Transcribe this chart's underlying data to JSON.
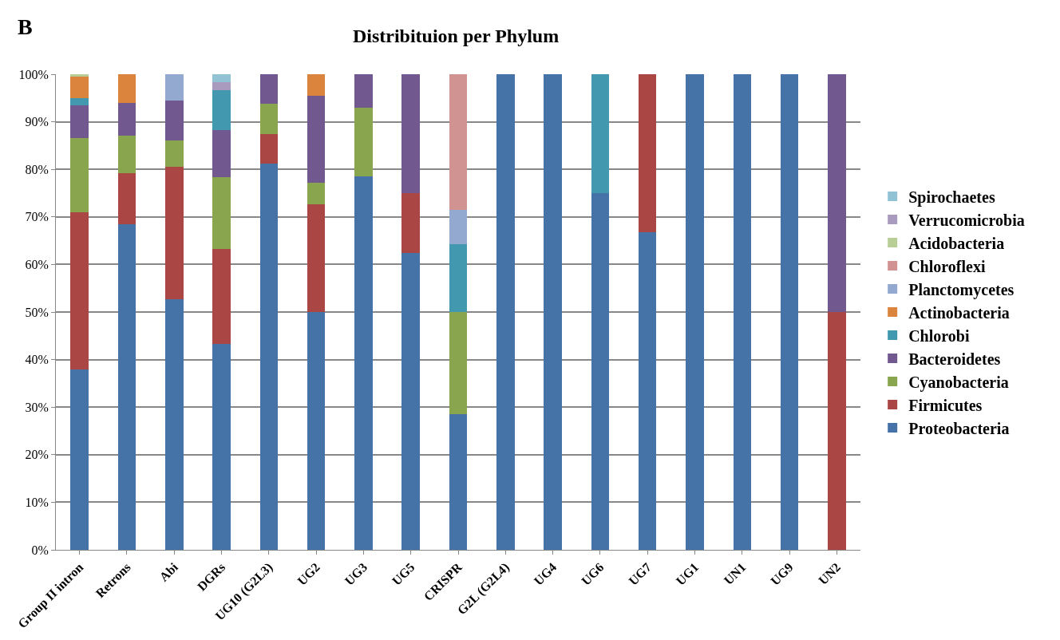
{
  "chart_data": {
    "type": "bar",
    "stacked": true,
    "title": "Distribituion per Phylum",
    "annotations": [
      "B"
    ],
    "categories": [
      "Group II intron",
      "Retrons",
      "Abi",
      "DGRs",
      "UG10 (G2L3)",
      "UG2",
      "UG3",
      "UG5",
      "CRISPR",
      "G2L (G2L4)",
      "UG4",
      "UG6",
      "UG7",
      "UG1",
      "UN1",
      "UG9",
      "UN2"
    ],
    "ylim": [
      0,
      100
    ],
    "yticks": [
      {
        "value": 0,
        "label": "0%"
      },
      {
        "value": 10,
        "label": "10%"
      },
      {
        "value": 20,
        "label": "20%"
      },
      {
        "value": 30,
        "label": "30%"
      },
      {
        "value": 40,
        "label": "40%"
      },
      {
        "value": 50,
        "label": "50%"
      },
      {
        "value": 60,
        "label": "60%"
      },
      {
        "value": 70,
        "label": "70%"
      },
      {
        "value": 80,
        "label": "80%"
      },
      {
        "value": 90,
        "label": "90%"
      },
      {
        "value": 100,
        "label": "100%"
      }
    ],
    "grid": "y",
    "legend": "right",
    "series": [
      {
        "name": "Proteobacteria",
        "color": "#4572a7",
        "values": [
          38,
          68.4,
          52.7,
          43.3,
          81.2,
          50,
          78.6,
          62.5,
          28.6,
          100,
          100,
          75,
          66.7,
          100,
          100,
          100,
          null
        ]
      },
      {
        "name": "Firmicutes",
        "color": "#aa4643",
        "values": [
          33,
          10.8,
          27.8,
          20,
          6.3,
          22.7,
          null,
          12.5,
          null,
          null,
          null,
          null,
          33.3,
          null,
          null,
          null,
          50
        ]
      },
      {
        "name": "Cyanobacteria",
        "color": "#89a54e",
        "values": [
          15.5,
          7.8,
          5.5,
          15,
          6.3,
          4.5,
          14.3,
          null,
          21.4,
          null,
          null,
          null,
          null,
          null,
          null,
          null,
          null
        ]
      },
      {
        "name": "Bacteroidetes",
        "color": "#71588f",
        "values": [
          7,
          7,
          8.4,
          10,
          6.2,
          18.2,
          7.1,
          25,
          null,
          null,
          null,
          null,
          null,
          null,
          null,
          null,
          50
        ]
      },
      {
        "name": "Chlorobi",
        "color": "#4198af",
        "values": [
          1.5,
          null,
          null,
          8.4,
          null,
          null,
          null,
          null,
          14.3,
          null,
          null,
          25,
          null,
          null,
          null,
          null,
          null
        ]
      },
      {
        "name": "Actinobacteria",
        "color": "#db843d",
        "values": [
          4.5,
          6,
          null,
          null,
          null,
          4.6,
          null,
          null,
          null,
          null,
          null,
          null,
          null,
          null,
          null,
          null,
          null
        ]
      },
      {
        "name": "Planctomycetes",
        "color": "#93a9cf",
        "values": [
          null,
          null,
          5.6,
          null,
          null,
          null,
          null,
          null,
          7.1,
          null,
          null,
          null,
          null,
          null,
          null,
          null,
          null
        ]
      },
      {
        "name": "Chloroflexi",
        "color": "#d19392",
        "values": [
          null,
          null,
          null,
          null,
          null,
          null,
          null,
          null,
          28.6,
          null,
          null,
          null,
          null,
          null,
          null,
          null,
          null
        ]
      },
      {
        "name": "Acidobacteria",
        "color": "#b9cd96",
        "values": [
          0.5,
          null,
          null,
          null,
          null,
          null,
          null,
          null,
          null,
          null,
          null,
          null,
          null,
          null,
          null,
          null,
          null
        ]
      },
      {
        "name": "Verrucomicrobia",
        "color": "#a99bbd",
        "values": [
          null,
          null,
          null,
          1.6,
          null,
          null,
          null,
          null,
          null,
          null,
          null,
          null,
          null,
          null,
          null,
          null,
          null
        ]
      },
      {
        "name": "Spirochaetes",
        "color": "#91c3d5",
        "values": [
          null,
          null,
          null,
          1.7,
          null,
          null,
          null,
          null,
          null,
          null,
          null,
          null,
          null,
          null,
          null,
          null,
          null
        ]
      }
    ]
  }
}
